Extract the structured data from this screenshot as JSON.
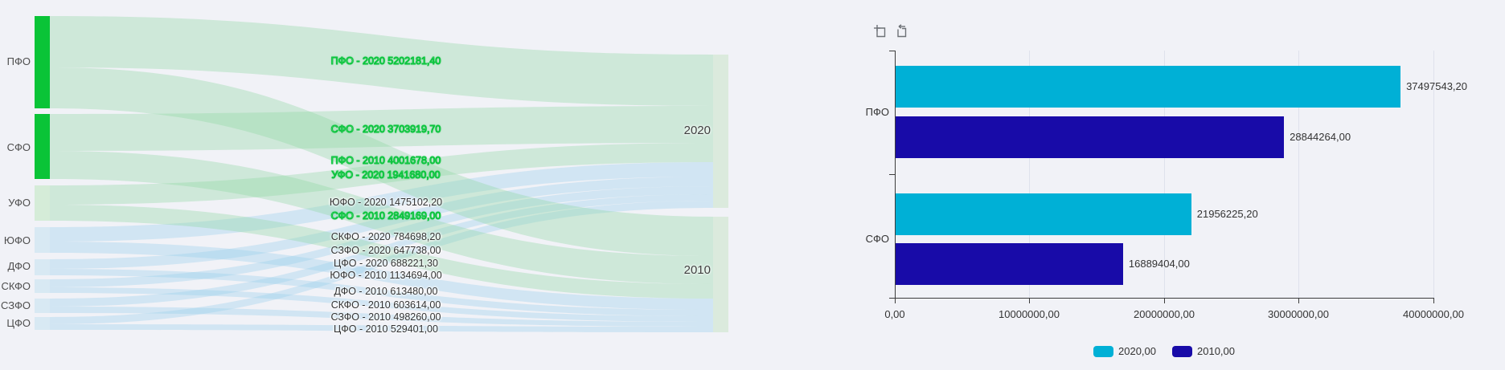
{
  "page": {
    "background": "#f1f2f7"
  },
  "chart_data": [
    {
      "type": "sankey",
      "sources": [
        "ПФО",
        "СФО",
        "УФО",
        "ЮФО",
        "ДФО",
        "СКФО",
        "СЗФО",
        "ЦФО"
      ],
      "targets": [
        "2020",
        "2010"
      ],
      "links": [
        {
          "source": "ПФО",
          "target": "2020",
          "value": 5202181.4,
          "label": "ПФО - 2020 5202181,40",
          "highlighted": true
        },
        {
          "source": "СФО",
          "target": "2020",
          "value": 3703919.7,
          "label": "СФО - 2020 3703919,70",
          "highlighted": true
        },
        {
          "source": "ПФО",
          "target": "2010",
          "value": 4001678.0,
          "label": "ПФО - 2010 4001678,00",
          "highlighted": true
        },
        {
          "source": "УФО",
          "target": "2020",
          "value": 1941680.0,
          "label": "УФО - 2020 1941680,00",
          "highlighted": true
        },
        {
          "source": "ЮФО",
          "target": "2020",
          "value": 1475102.2,
          "label": "ЮФО - 2020 1475102,20",
          "highlighted": false
        },
        {
          "source": "СФО",
          "target": "2010",
          "value": 2849169.0,
          "label": "СФО - 2010 2849169,00",
          "highlighted": true
        },
        {
          "source": "СКФО",
          "target": "2020",
          "value": 784698.2,
          "label": "СКФО - 2020 784698,20",
          "highlighted": false
        },
        {
          "source": "СЗФО",
          "target": "2020",
          "value": 647738.0,
          "label": "СЗФО - 2020 647738,00",
          "highlighted": false
        },
        {
          "source": "ЦФО",
          "target": "2020",
          "value": 688221.3,
          "label": "ЦФО - 2020 688221,30",
          "highlighted": false
        },
        {
          "source": "ЮФО",
          "target": "2010",
          "value": 1134694.0,
          "label": "ЮФО - 2010 1134694,00",
          "highlighted": false
        },
        {
          "source": "ДФО",
          "target": "2010",
          "value": 613480.0,
          "label": "ДФО - 2010 613480,00",
          "highlighted": false
        },
        {
          "source": "СКФО",
          "target": "2010",
          "value": 603614.0,
          "label": "СКФО - 2010 603614,00",
          "highlighted": false
        },
        {
          "source": "СЗФО",
          "target": "2010",
          "value": 498260.0,
          "label": "СЗФО - 2010 498260,00",
          "highlighted": false
        },
        {
          "source": "ЦФО",
          "target": "2010",
          "value": 529401.0,
          "label": "ЦФО - 2010 529401,00",
          "highlighted": false
        }
      ],
      "colors": {
        "node_green": "#0ac437",
        "node_pale_green": "#d5ecd8",
        "node_pale_blue": "#d8e9f3",
        "target_node": "#dbeadd",
        "link_green": "rgba(140,214,160,0.35)",
        "link_blue": "rgba(150,205,235,0.35)",
        "highlight_label": "#0cc43e"
      }
    },
    {
      "type": "bar",
      "orientation": "horizontal",
      "categories": [
        "ПФО",
        "СФО"
      ],
      "series": [
        {
          "name": "2020,00",
          "color": "#00b0d6",
          "values": [
            37497543.2,
            21956225.2
          ],
          "value_labels": [
            "37497543,20",
            "21956225,20"
          ]
        },
        {
          "name": "2010,00",
          "color": "#180ba8",
          "values": [
            28844264.0,
            16889404.0
          ],
          "value_labels": [
            "28844264,00",
            "16889404,00"
          ]
        }
      ],
      "x_axis": {
        "min": 0,
        "max": 40000000,
        "tick_labels": [
          "0,00",
          "10000000,00",
          "20000000,00",
          "30000000,00",
          "40000000,00"
        ]
      },
      "legend": [
        {
          "label": "2020,00",
          "color": "#00b0d6"
        },
        {
          "label": "2010,00",
          "color": "#180ba8"
        }
      ],
      "toolbar_icons": [
        "box-zoom-icon",
        "undo-zoom-icon"
      ]
    }
  ]
}
